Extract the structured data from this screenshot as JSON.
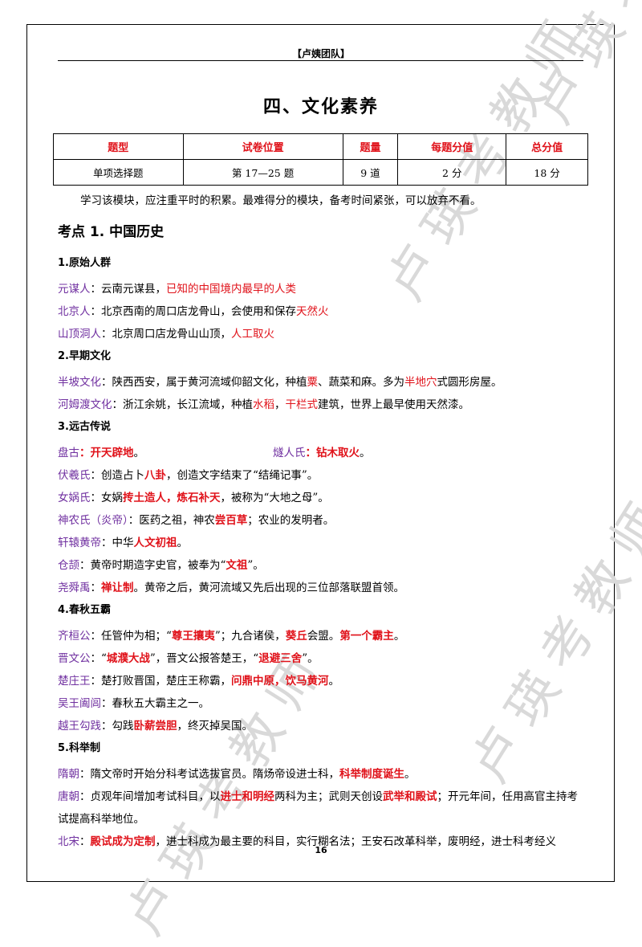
{
  "header": "【卢姨团队】",
  "title": "四、文化素养",
  "watermark": "卢瑛考教师",
  "table": {
    "headers": [
      "题型",
      "试卷位置",
      "题量",
      "每题分值",
      "总分值"
    ],
    "row": [
      "单项选择题",
      "第 17—25 题",
      "9 道",
      "2 分",
      "18 分"
    ]
  },
  "intro": "学习该模块，应注重平时的积累。最难得分的模块，备考时间紧张，可以放弃不看。",
  "section": "考点 1. 中国历史",
  "s1": {
    "title": "1.原始人群",
    "l1": {
      "k": "元谋人",
      "a": "：云南元谋县，",
      "r": "已知的中国境内最早的人类"
    },
    "l2": {
      "k": "北京人",
      "a": "：北京西南的周口店龙骨山，会使用和保存",
      "r": "天然火"
    },
    "l3": {
      "k": "山顶洞人",
      "a": "：北京周口店龙骨山山顶，",
      "r": "人工取火"
    }
  },
  "s2": {
    "title": "2.早期文化",
    "l1": {
      "k": "半坡文化",
      "a": "：陕西西安，属于黄河流域仰韶文化，种植",
      "r1": "粟",
      "b": "、蔬菜和麻。多为",
      "r2": "半地穴",
      "c": "式圆形房屋。"
    },
    "l2": {
      "k": "河姆渡文化",
      "a": "：浙江余姚，长江流域，种植",
      "r1": "水稻",
      "b": "，",
      "r2": "干栏式",
      "c": "建筑，世界上最早使用天然漆。"
    }
  },
  "s3": {
    "title": "3.远古传说",
    "l1": {
      "k1": "盘古",
      "r1": "：开天辟地",
      "d1": "。",
      "k2": "燧人氏",
      "r2": "：钻木取火",
      "d2": "。"
    },
    "l2": {
      "k": "伏羲氏",
      "a": "：创造占卜",
      "r": "八卦",
      "b": "，创造文字结束了“结绳记事”。"
    },
    "l3": {
      "k": "女娲氏",
      "a": "：女娲",
      "r": "抟土造人，炼石补天",
      "b": "，被称为“大地之母”。"
    },
    "l4": {
      "k": "神农氏（炎帝）",
      "a": "：医药之祖，神农",
      "r": "尝百草",
      "b": "；农业的发明者。"
    },
    "l5": {
      "k": "轩辕黄帝",
      "a": "：中华",
      "r": "人文初祖",
      "b": "。"
    },
    "l6": {
      "k": "仓颉",
      "a": "：黄帝时期造字史官，被奉为“",
      "r": "文祖",
      "b": "”。"
    },
    "l7": {
      "k": "尧舜禹",
      "a": "：",
      "r": "禅让制",
      "b": "。黄帝之后，黄河流域又先后出现的三位部落联盟首领。"
    }
  },
  "s4": {
    "title": "4.春秋五霸",
    "l1": {
      "k": "齐桓公",
      "a": "：任管仲为相；“",
      "r1": "尊王攘夷",
      "b": "”；九合诸侯，",
      "r2": "葵丘",
      "c": "会盟。",
      "r3": "第一个霸主",
      "d": "。"
    },
    "l2": {
      "k": "晋文公",
      "a": "：“",
      "r1": "城濮大战",
      "b": "”，晋文公报答楚王，“",
      "r2": "退避三舍",
      "c": "”。"
    },
    "l3": {
      "k": "楚庄王",
      "a": "：楚打败晋国，楚庄王称霸，",
      "r": "问鼎中原，饮马黄河",
      "b": "。"
    },
    "l4": {
      "k": "吴王阖闾",
      "a": "：春秋五大霸主之一。"
    },
    "l5": {
      "k": "越王勾践",
      "a": "：勾践",
      "r": "卧薪尝胆",
      "b": "，终灭掉吴国。"
    }
  },
  "s5": {
    "title": "5.科举制",
    "l1": {
      "k": "隋朝",
      "a": "：隋文帝时开始分科考试选拔官员。隋炀帝设进士科，",
      "r": "科举制度诞生",
      "b": "。"
    },
    "l2": {
      "k": "唐朝",
      "a": "：贞观年间增加考试科目，以",
      "r1": "进士和明经",
      "b": "两科为主；武则天创设",
      "r2": "武举和殿试",
      "c": "；开元年间，任用高官主持考试提高科举地位。"
    },
    "l3": {
      "k": "北宋",
      "a": "：",
      "r": "殿试成为定制",
      "b": "，进士科成为最主要的科目，实行糊名法；王安石改革科举，废明经，进士科考经义"
    }
  },
  "page_number": "16"
}
